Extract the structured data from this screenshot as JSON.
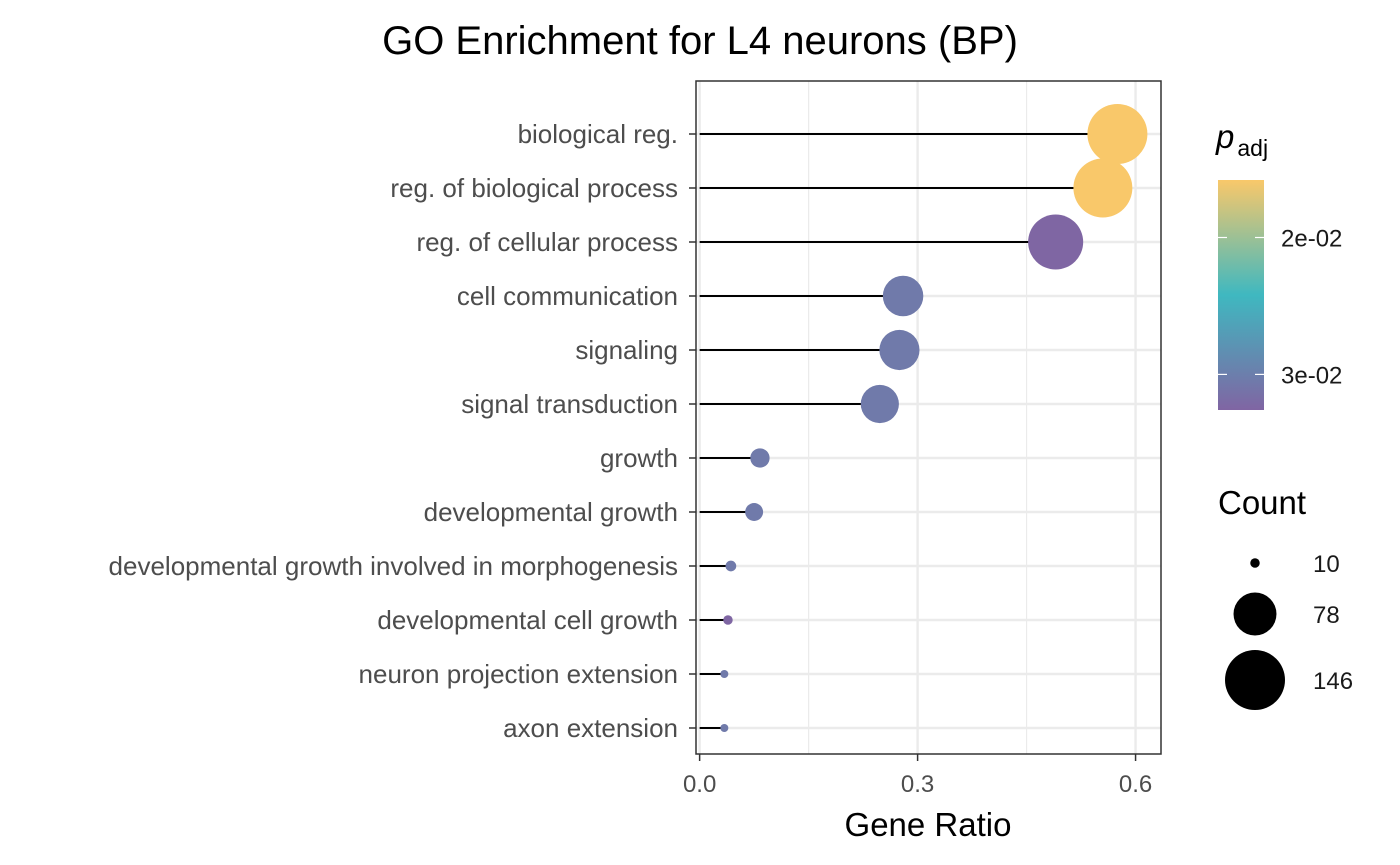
{
  "chart_data": {
    "type": "scatter",
    "subtype": "lollipop",
    "title": "GO Enrichment for L4 neurons (BP)",
    "xlabel": "Gene Ratio",
    "ylabel": "",
    "xlim": [
      -0.005,
      0.635
    ],
    "xticks": [
      0.0,
      0.3,
      0.6
    ],
    "xtick_labels": [
      "0.0",
      "0.3",
      "0.6"
    ],
    "grid": true,
    "categories": [
      "biological reg.",
      "reg. of biological process",
      "reg. of cellular process",
      "cell communication",
      "signaling",
      "signal transduction",
      "growth",
      "developmental growth",
      "developmental growth involved in morphogenesis",
      "developmental cell growth",
      "neuron projection extension",
      "axon extension"
    ],
    "gene_ratio": [
      0.575,
      0.555,
      0.49,
      0.28,
      0.275,
      0.248,
      0.083,
      0.075,
      0.043,
      0.039,
      0.034,
      0.034
    ],
    "count": [
      146,
      141,
      124,
      70,
      69,
      63,
      21,
      19,
      11,
      10,
      9,
      9
    ],
    "p_adj": [
      0.0158,
      0.0158,
      0.0325,
      0.0305,
      0.0305,
      0.0305,
      0.0305,
      0.0305,
      0.0305,
      0.0325,
      0.0305,
      0.0305
    ],
    "color_legend": {
      "title_main": "p",
      "title_sub": "adj",
      "ticks": [
        0.02,
        0.03
      ],
      "tick_labels": [
        "2e-02",
        "3e-02"
      ],
      "range": [
        0.0158,
        0.0326
      ],
      "colors": [
        "#f9c86a",
        "#3fb8c0",
        "#8065a3"
      ]
    },
    "size_legend": {
      "title": "Count",
      "values": [
        10,
        78,
        146
      ],
      "labels": [
        "10",
        "78",
        "146"
      ]
    },
    "legend_position": "right"
  }
}
